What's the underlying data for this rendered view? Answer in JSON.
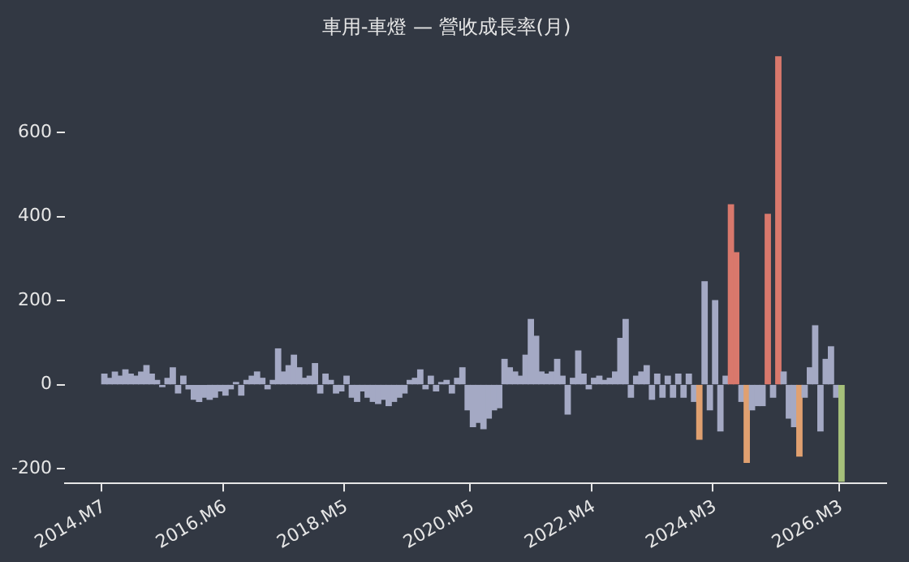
{
  "chart_data": {
    "type": "bar",
    "title": "車用-車燈 — 營收成長率(月)",
    "categories": [
      null,
      null,
      null,
      null,
      null,
      null,
      null,
      "2014.M7",
      null,
      null,
      null,
      null,
      null,
      null,
      null,
      null,
      null,
      null,
      null,
      null,
      null,
      null,
      null,
      null,
      null,
      null,
      null,
      null,
      null,
      null,
      "2016.M6",
      null,
      null,
      null,
      null,
      null,
      null,
      null,
      null,
      null,
      null,
      null,
      null,
      null,
      null,
      null,
      null,
      null,
      null,
      null,
      null,
      null,
      null,
      "2018.M5",
      null,
      null,
      null,
      null,
      null,
      null,
      null,
      null,
      null,
      null,
      null,
      null,
      null,
      null,
      null,
      null,
      null,
      null,
      null,
      null,
      null,
      null,
      null,
      "2020.M5",
      null,
      null,
      null,
      null,
      null,
      null,
      null,
      null,
      null,
      null,
      null,
      null,
      null,
      null,
      null,
      null,
      null,
      null,
      null,
      null,
      null,
      null,
      "2022.M4",
      null,
      null,
      null,
      null,
      null,
      null,
      null,
      null,
      null,
      null,
      null,
      null,
      null,
      null,
      null,
      null,
      null,
      null,
      null,
      null,
      null,
      null,
      "2024.M3",
      null,
      null,
      null,
      null,
      null,
      null,
      null,
      null,
      null,
      null,
      null,
      null,
      null,
      null,
      null,
      null,
      null,
      null,
      null,
      null,
      null,
      null,
      null,
      "2026.M3",
      null,
      null,
      null,
      null,
      null,
      null,
      null,
      null
    ],
    "values": [
      null,
      null,
      null,
      null,
      null,
      null,
      null,
      25,
      15,
      30,
      20,
      35,
      25,
      20,
      30,
      45,
      25,
      10,
      -5,
      15,
      40,
      -20,
      20,
      -10,
      -35,
      -40,
      -30,
      -35,
      -30,
      -15,
      -25,
      -10,
      5,
      -25,
      10,
      20,
      30,
      15,
      -10,
      10,
      85,
      30,
      45,
      70,
      40,
      15,
      20,
      50,
      -20,
      25,
      10,
      -20,
      -15,
      20,
      -30,
      -40,
      -15,
      -30,
      -40,
      -45,
      -35,
      -50,
      -40,
      -30,
      -20,
      10,
      15,
      35,
      -10,
      20,
      -15,
      5,
      10,
      -20,
      15,
      40,
      -60,
      -100,
      -90,
      -105,
      -80,
      -60,
      -55,
      60,
      40,
      30,
      20,
      70,
      155,
      115,
      30,
      25,
      30,
      60,
      20,
      -70,
      15,
      80,
      25,
      -10,
      15,
      20,
      10,
      15,
      30,
      110,
      155,
      -30,
      20,
      30,
      45,
      -35,
      25,
      -30,
      20,
      -30,
      25,
      -30,
      25,
      -40,
      -130,
      245,
      -60,
      200,
      -110,
      20,
      428,
      314,
      -40,
      -185,
      -60,
      -50,
      -50,
      405,
      -30,
      780,
      30,
      -80,
      -100,
      -170,
      -30,
      40,
      140,
      -110,
      60,
      90,
      -30,
      -230,
      null,
      null,
      null,
      null,
      null,
      null,
      null,
      null
    ],
    "colors": [
      "#a4a9c4",
      "#a4a9c4",
      "#a4a9c4",
      "#a4a9c4",
      "#a4a9c4",
      "#a4a9c4",
      "#a4a9c4",
      "#a4a9c4",
      "#a4a9c4",
      "#a4a9c4",
      "#a4a9c4",
      "#a4a9c4",
      "#a4a9c4",
      "#a4a9c4",
      "#a4a9c4",
      "#a4a9c4",
      "#a4a9c4",
      "#a4a9c4",
      "#a4a9c4",
      "#a4a9c4",
      "#a4a9c4",
      "#a4a9c4",
      "#a4a9c4",
      "#a4a9c4",
      "#a4a9c4",
      "#a4a9c4",
      "#a4a9c4",
      "#a4a9c4",
      "#a4a9c4",
      "#a4a9c4",
      "#a4a9c4",
      "#a4a9c4",
      "#a4a9c4",
      "#a4a9c4",
      "#a4a9c4",
      "#a4a9c4",
      "#a4a9c4",
      "#a4a9c4",
      "#a4a9c4",
      "#a4a9c4",
      "#a4a9c4",
      "#a4a9c4",
      "#a4a9c4",
      "#a4a9c4",
      "#a4a9c4",
      "#a4a9c4",
      "#a4a9c4",
      "#a4a9c4",
      "#a4a9c4",
      "#a4a9c4",
      "#a4a9c4",
      "#a4a9c4",
      "#a4a9c4",
      "#a4a9c4",
      "#a4a9c4",
      "#a4a9c4",
      "#a4a9c4",
      "#a4a9c4",
      "#a4a9c4",
      "#a4a9c4",
      "#a4a9c4",
      "#a4a9c4",
      "#a4a9c4",
      "#a4a9c4",
      "#a4a9c4",
      "#a4a9c4",
      "#a4a9c4",
      "#a4a9c4",
      "#a4a9c4",
      "#a4a9c4",
      "#a4a9c4",
      "#a4a9c4",
      "#a4a9c4",
      "#a4a9c4",
      "#a4a9c4",
      "#a4a9c4",
      "#a4a9c4",
      "#a4a9c4",
      "#a4a9c4",
      "#a4a9c4",
      "#a4a9c4",
      "#a4a9c4",
      "#a4a9c4",
      "#a4a9c4",
      "#a4a9c4",
      "#a4a9c4",
      "#a4a9c4",
      "#a4a9c4",
      "#a4a9c4",
      "#a4a9c4",
      "#a4a9c4",
      "#a4a9c4",
      "#a4a9c4",
      "#a4a9c4",
      "#a4a9c4",
      "#a4a9c4",
      "#a4a9c4",
      "#a4a9c4",
      "#a4a9c4",
      "#a4a9c4",
      "#a4a9c4",
      "#a4a9c4",
      "#a4a9c4",
      "#a4a9c4",
      "#a4a9c4",
      "#a4a9c4",
      "#a4a9c4",
      "#a4a9c4",
      "#a4a9c4",
      "#a4a9c4",
      "#a4a9c4",
      "#a4a9c4",
      "#a4a9c4",
      "#a4a9c4",
      "#a4a9c4",
      "#a4a9c4",
      "#a4a9c4",
      "#a4a9c4",
      "#a4a9c4",
      "#a4a9c4",
      "#e0a070",
      "#a4a9c4",
      "#a4a9c4",
      "#a4a9c4",
      "#a4a9c4",
      "#a4a9c4",
      "#d9786c",
      "#d9786c",
      "#a4a9c4",
      "#e0a070",
      "#a4a9c4",
      "#a4a9c4",
      "#a4a9c4",
      "#d9786c",
      "#a4a9c4",
      "#d9786c",
      "#a4a9c4",
      "#a4a9c4",
      "#a4a9c4",
      "#e0a070",
      "#a4a9c4",
      "#a4a9c4",
      "#a4a9c4",
      "#a4a9c4",
      "#a4a9c4",
      "#a4a9c4",
      "#a4a9c4",
      "#a6c07a",
      "#a4a9c4",
      "#a4a9c4",
      "#a4a9c4",
      "#a4a9c4",
      "#a4a9c4",
      "#a4a9c4",
      "#a4a9c4",
      "#a4a9c4"
    ],
    "ylim": [
      -235,
      790
    ],
    "yticks": [
      -200,
      0,
      200,
      400,
      600
    ],
    "grid": false,
    "legend": false
  }
}
